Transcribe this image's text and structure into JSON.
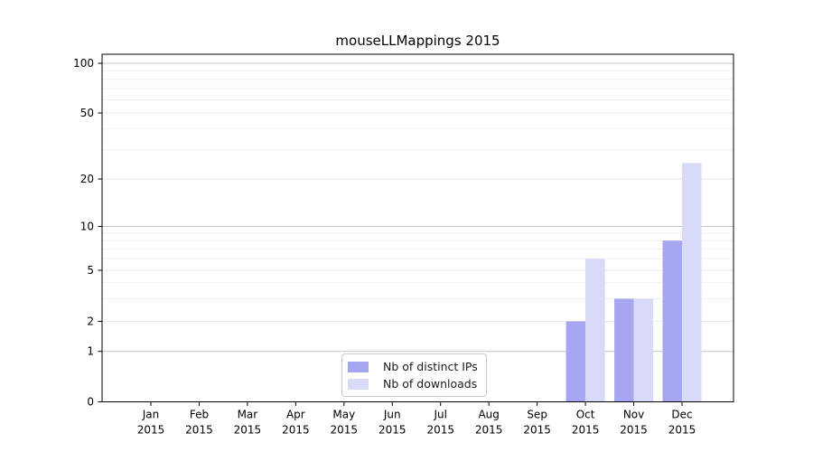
{
  "chart_data": {
    "type": "bar",
    "title": "mouseLLMappings 2015",
    "categories": [
      "Jan",
      "Feb",
      "Mar",
      "Apr",
      "May",
      "Jun",
      "Jul",
      "Aug",
      "Sep",
      "Oct",
      "Nov",
      "Dec"
    ],
    "category_year": "2015",
    "series": [
      {
        "name": "Nb of distinct IPs",
        "color": "#a6a6f2",
        "values": [
          0,
          0,
          0,
          0,
          0,
          0,
          0,
          0,
          0,
          2,
          3,
          8
        ]
      },
      {
        "name": "Nb of downloads",
        "color": "#d9d9f8",
        "values": [
          0,
          0,
          0,
          0,
          0,
          0,
          0,
          0,
          0,
          6,
          3,
          25
        ]
      }
    ],
    "y_axis": {
      "ticks": [
        0,
        1,
        2,
        5,
        10,
        20,
        50,
        100
      ],
      "major_grid_values": [
        1,
        10,
        100
      ],
      "minor_grid_values": [
        3,
        4,
        6,
        7,
        8,
        9,
        30,
        40,
        60,
        70,
        80,
        90
      ],
      "scale": "log-like with zero baseline",
      "ylim": [
        0,
        110
      ]
    },
    "xlabel": "",
    "ylabel": "",
    "grid": "on",
    "legend": {
      "position": "lower center",
      "entries": [
        "Nb of distinct IPs",
        "Nb of downloads"
      ]
    }
  }
}
